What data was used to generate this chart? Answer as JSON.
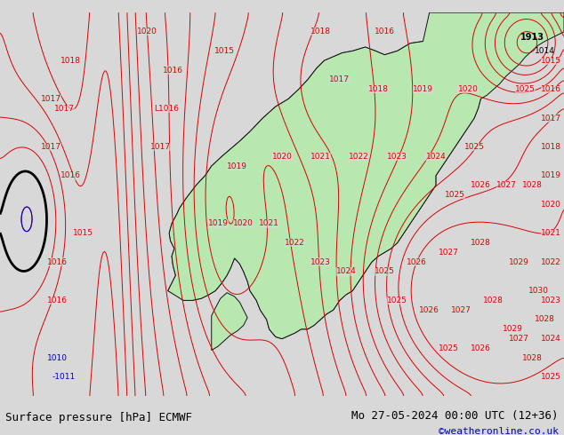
{
  "title_left": "Surface pressure [hPa] ECMWF",
  "title_right": "Mo 27-05-2024 00:00 UTC (12+36)",
  "copyright": "©weatheronline.co.uk",
  "bg_color": "#d8d8d8",
  "land_color": "#b8e8b0",
  "mountain_color": "#c8c8c8",
  "sea_color": "#d8d8d8",
  "isobar_red": "#dd0000",
  "isobar_blue": "#0000cc",
  "isobar_black": "#000000",
  "border_color": "#111111",
  "bottom_bar_color": "#e8e8e8",
  "font_size_bottom": 9,
  "font_size_labels": 7,
  "lon_min": -8.5,
  "lon_max": 35.5,
  "lat_min": 52.5,
  "lat_max": 72.5
}
